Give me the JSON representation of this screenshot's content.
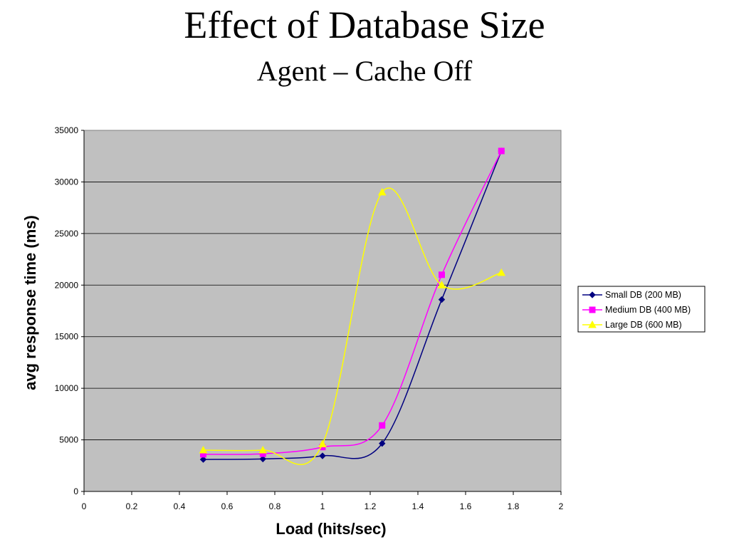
{
  "slide": {
    "title": "Effect of Database Size",
    "subtitle": "Agent – Cache Off"
  },
  "chart_data": {
    "type": "line",
    "title": "",
    "xlabel": "Load (hits/sec)",
    "ylabel": "avg response time (ms)",
    "xlim": [
      0,
      2
    ],
    "ylim": [
      0,
      35000
    ],
    "x_ticks": [
      "0",
      "0.2",
      "0.4",
      "0.6",
      "0.8",
      "1",
      "1.2",
      "1.4",
      "1.6",
      "1.8",
      "2"
    ],
    "y_ticks": [
      "0",
      "5000",
      "10000",
      "15000",
      "20000",
      "25000",
      "30000",
      "35000"
    ],
    "grid": "horizontal",
    "plot_background": "#c0c0c0",
    "legend_position": "right",
    "smooth": true,
    "x": [
      0.5,
      0.75,
      1.0,
      1.25,
      1.5,
      1.75
    ],
    "series": [
      {
        "name": "Small DB (200 MB)",
        "color": "#000080",
        "marker": "diamond",
        "values": [
          3100,
          3150,
          3450,
          4650,
          18600,
          33000
        ]
      },
      {
        "name": "Medium DB (400 MB)",
        "color": "#ff00ff",
        "marker": "square",
        "values": [
          3600,
          3650,
          4300,
          6400,
          21000,
          33000
        ]
      },
      {
        "name": "Large DB (600 MB)",
        "color": "#ffff00",
        "marker": "triangle",
        "values": [
          4000,
          4000,
          4600,
          29000,
          20000,
          21200
        ]
      }
    ]
  }
}
